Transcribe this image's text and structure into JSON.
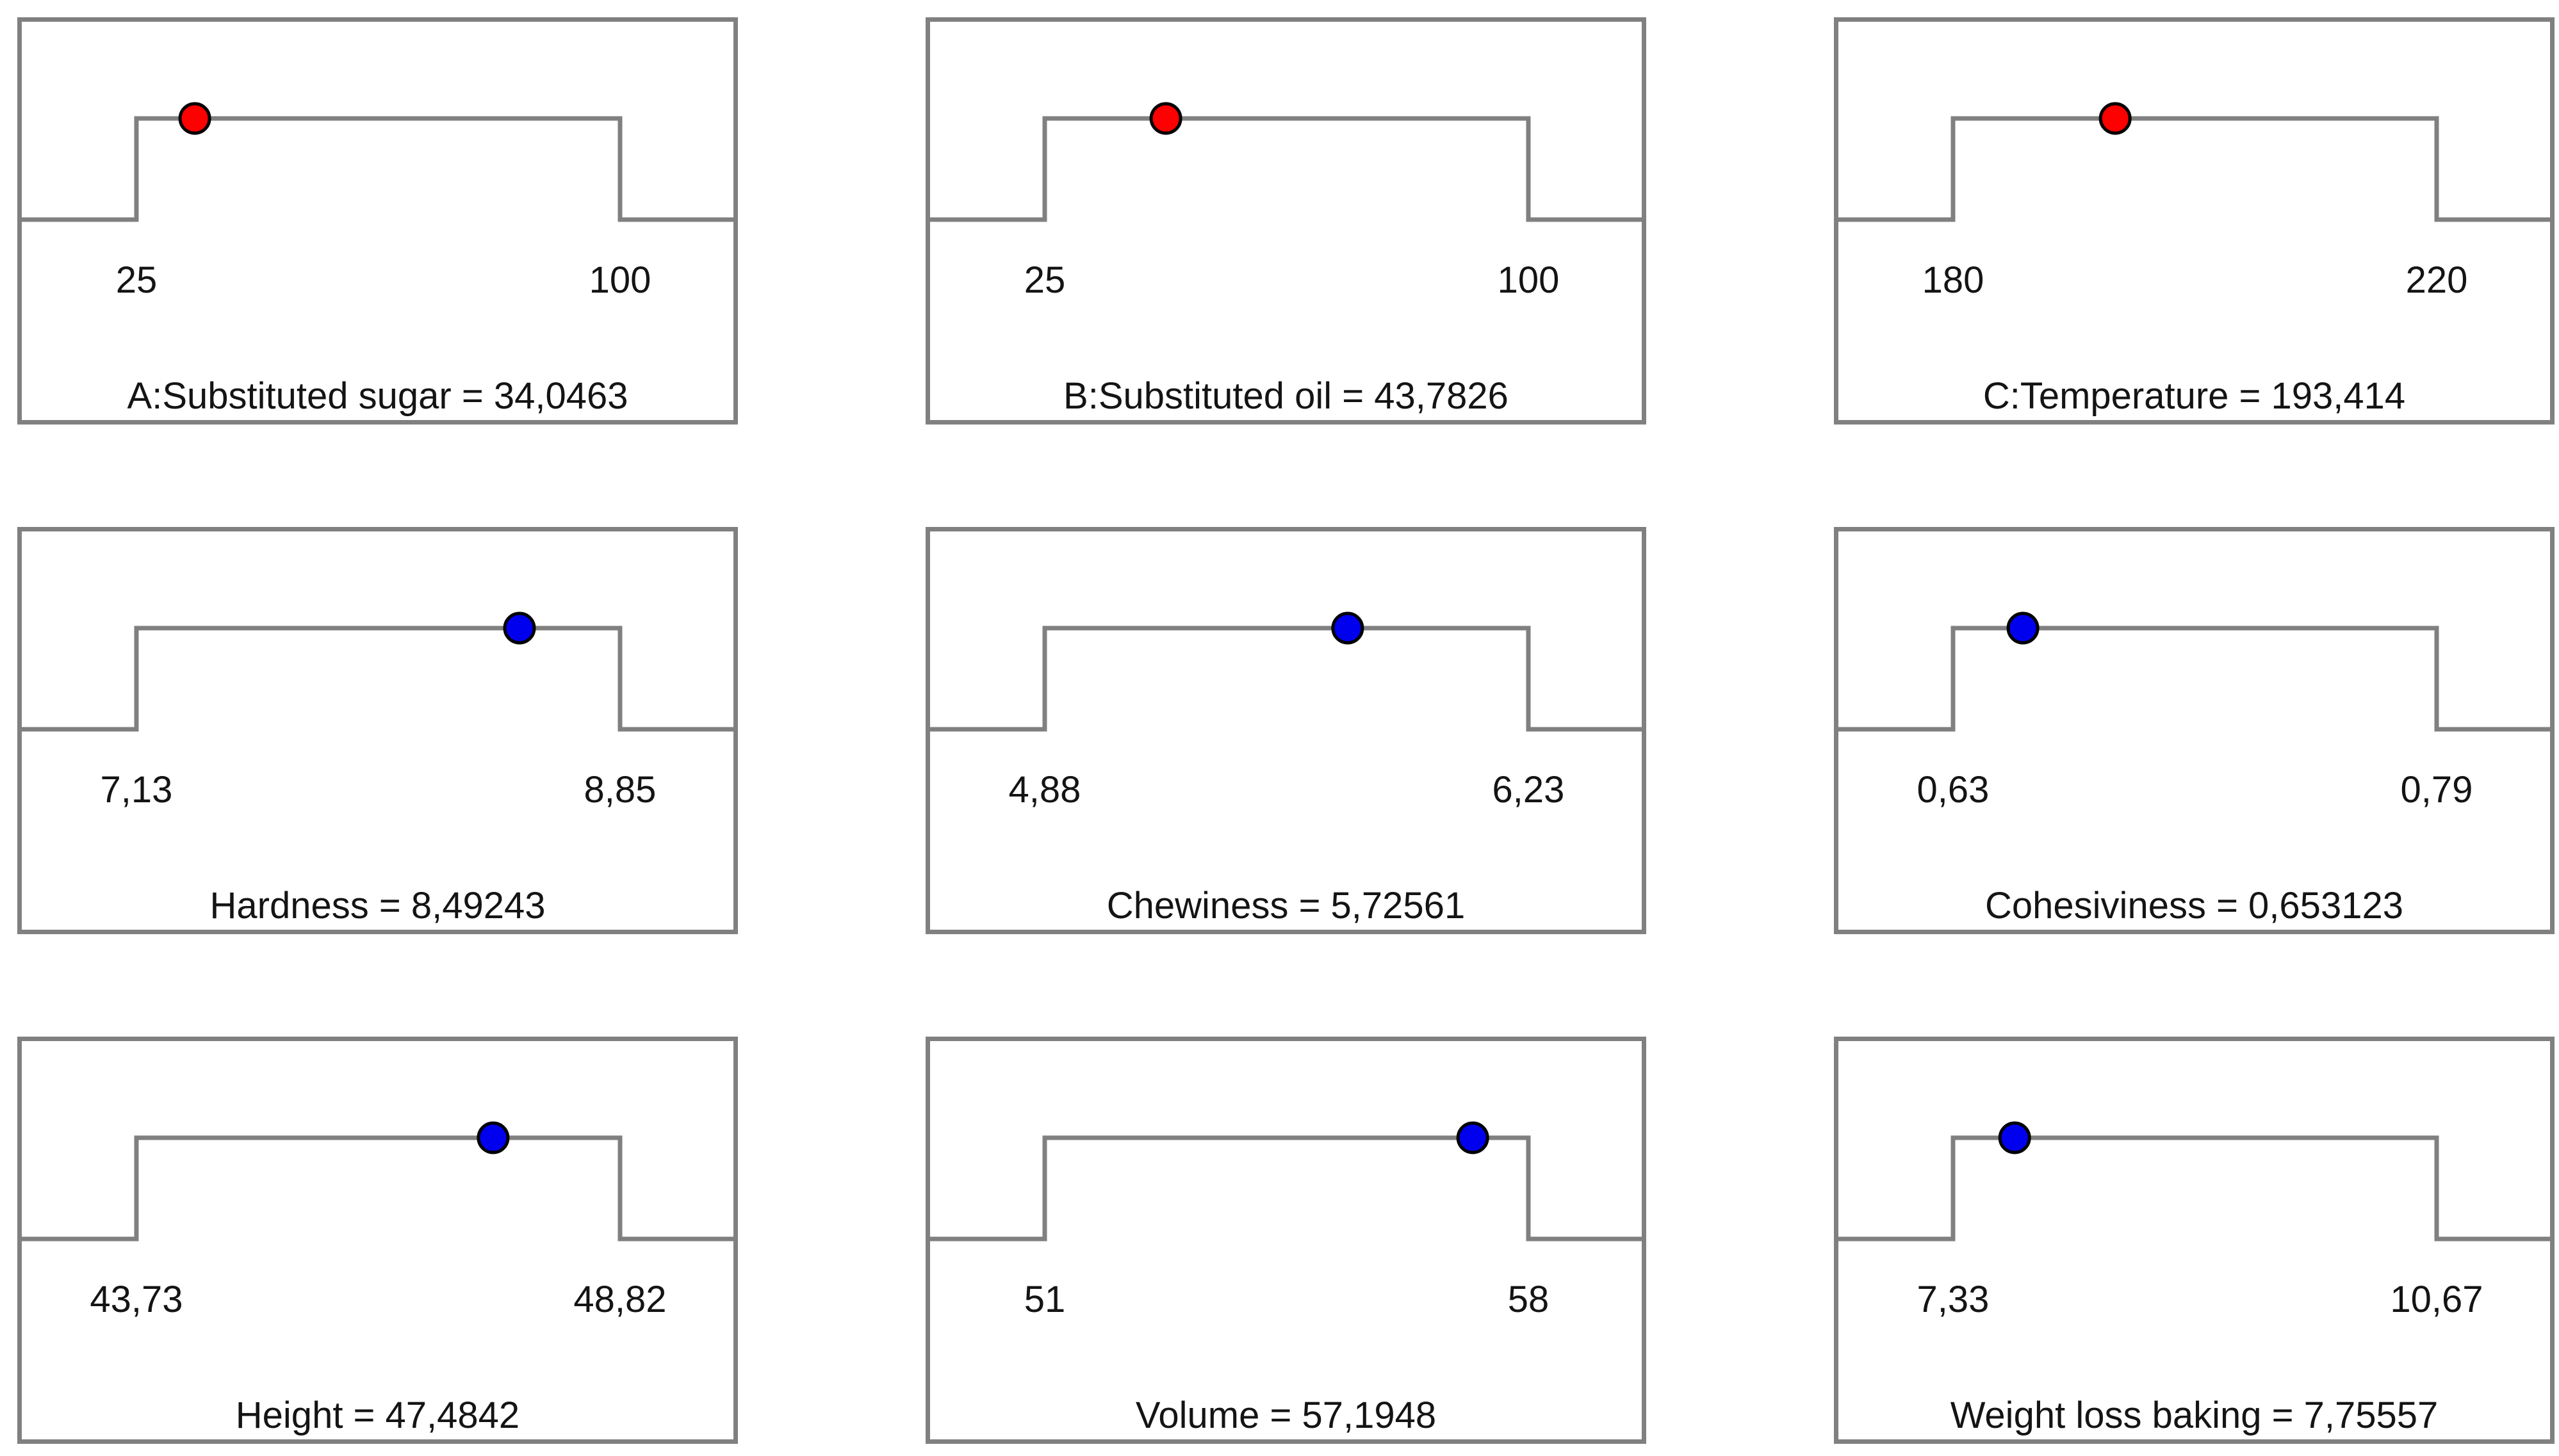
{
  "figure": {
    "background_color": "#ffffff",
    "line_color": "#808080",
    "text_color": "#141414",
    "factor_dot_color": "#ff0000",
    "response_dot_color": "#0000ee",
    "dot_outline_color": "#000000",
    "equals_separator": " = "
  },
  "chart_data": {
    "type": "line",
    "subtype": "desirability-ramp-grid",
    "layout": {
      "rows": 3,
      "cols": 3,
      "legend": "none",
      "grid": "off"
    },
    "ramp_shape_note": "Each panel: flat low segment, step up to plateau between min and max, step down; marker sits on plateau at selected value",
    "panels": [
      {
        "id": "A",
        "role": "factor",
        "name": "A:Substituted sugar",
        "min": 25,
        "max": 100,
        "value": 34.0463,
        "min_label": "25",
        "max_label": "100",
        "value_label": "34,0463",
        "dot_color": "#ff0000"
      },
      {
        "id": "B",
        "role": "factor",
        "name": "B:Substituted oil",
        "min": 25,
        "max": 100,
        "value": 43.7826,
        "min_label": "25",
        "max_label": "100",
        "value_label": "43,7826",
        "dot_color": "#ff0000"
      },
      {
        "id": "C",
        "role": "factor",
        "name": "C:Temperature",
        "min": 180,
        "max": 220,
        "value": 193.414,
        "min_label": "180",
        "max_label": "220",
        "value_label": "193,414",
        "dot_color": "#ff0000"
      },
      {
        "id": "Hardness",
        "role": "response",
        "name": "Hardness",
        "min": 7.13,
        "max": 8.85,
        "value": 8.49243,
        "min_label": "7,13",
        "max_label": "8,85",
        "value_label": "8,49243",
        "dot_color": "#0000ee"
      },
      {
        "id": "Chewiness",
        "role": "response",
        "name": "Chewiness",
        "min": 4.88,
        "max": 6.23,
        "value": 5.72561,
        "min_label": "4,88",
        "max_label": "6,23",
        "value_label": "5,72561",
        "dot_color": "#0000ee"
      },
      {
        "id": "Cohesiviness",
        "role": "response",
        "name": "Cohesiviness",
        "min": 0.63,
        "max": 0.79,
        "value": 0.653123,
        "min_label": "0,63",
        "max_label": "0,79",
        "value_label": "0,653123",
        "dot_color": "#0000ee"
      },
      {
        "id": "Height",
        "role": "response",
        "name": "Height",
        "min": 43.73,
        "max": 48.82,
        "value": 47.4842,
        "min_label": "43,73",
        "max_label": "48,82",
        "value_label": "47,4842",
        "dot_color": "#0000ee"
      },
      {
        "id": "Volume",
        "role": "response",
        "name": "Volume",
        "min": 51,
        "max": 58,
        "value": 57.1948,
        "min_label": "51",
        "max_label": "58",
        "value_label": "57,1948",
        "dot_color": "#0000ee"
      },
      {
        "id": "WeightLossBaking",
        "role": "response",
        "name": "Weight loss baking",
        "min": 7.33,
        "max": 10.67,
        "value": 7.75557,
        "min_label": "7,33",
        "max_label": "10,67",
        "value_label": "7,75557",
        "dot_color": "#0000ee"
      }
    ]
  }
}
